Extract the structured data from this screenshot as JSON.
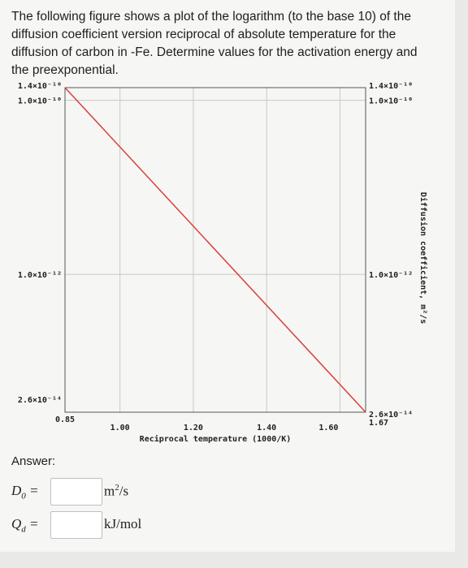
{
  "question": {
    "text": "The following figure shows a plot of the logarithm (to the base 10) of the diffusion coefficient version reciprocal of absolute temperature for the diffusion of carbon in -Fe. Determine values for the activation energy and the preexponential."
  },
  "answer": {
    "label": "Answer:",
    "d0": {
      "symbol": "D",
      "sub": "0",
      "eq": "=",
      "unit": "m",
      "unit_sup": "2",
      "unit_rest": "/s",
      "value": ""
    },
    "qd": {
      "symbol": "Q",
      "sub": "d",
      "eq": "=",
      "unit": "kJ/mol",
      "value": ""
    }
  },
  "chart_data": {
    "type": "line",
    "xlabel": "Reciprocal temperature (1000/K)",
    "ylabel": "Diffusion coefficient, m²/s",
    "x_ticks": [
      {
        "value": 0.85,
        "label": "0.85"
      },
      {
        "value": 1.0,
        "label": "1.00"
      },
      {
        "value": 1.2,
        "label": "1.20"
      },
      {
        "value": 1.4,
        "label": "1.40"
      },
      {
        "value": 1.6,
        "label": "1.60"
      },
      {
        "value": 1.67,
        "label": "1.67"
      }
    ],
    "y_ticks_left": [
      {
        "value": 1.4e-10,
        "label": "1.4×10⁻¹⁰"
      },
      {
        "value": 1e-10,
        "label": "1.0×10⁻¹⁰"
      },
      {
        "value": 1e-12,
        "label": "1.0×10⁻¹²"
      },
      {
        "value": 2.6e-14,
        "label": "2.6×10⁻¹⁴"
      }
    ],
    "y_ticks_right": [
      {
        "value": 1.4e-10,
        "label": "1.4×10⁻¹⁰"
      },
      {
        "value": 1e-10,
        "label": "1.0×10⁻¹⁰"
      },
      {
        "value": 1e-12,
        "label": "1.0×10⁻¹²"
      },
      {
        "value": 2.6e-14,
        "label": "2.6×10⁻¹⁴"
      }
    ],
    "xlim": [
      0.85,
      1.67
    ],
    "ylim": [
      2.6e-14,
      1.4e-10
    ],
    "yscale": "log",
    "grid": true,
    "series": [
      {
        "x": [
          0.85,
          1.67
        ],
        "y": [
          1.4e-10,
          2.6e-14
        ],
        "color": "#d9403a"
      }
    ]
  }
}
